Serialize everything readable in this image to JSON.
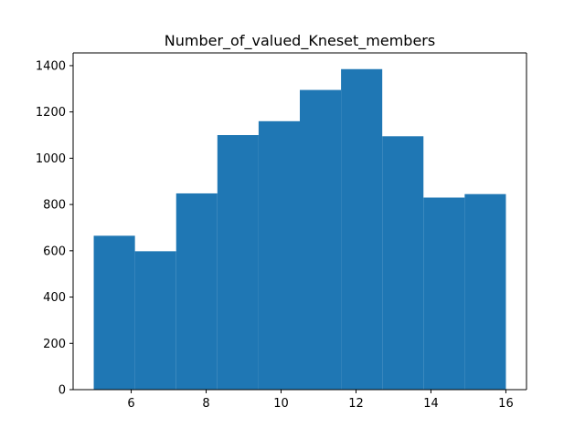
{
  "chart_data": {
    "type": "bar",
    "title": "Number_of_valued_Kneset_members",
    "xlabel": "",
    "ylabel": "",
    "bins": [
      {
        "x0": 5.0,
        "x1": 6.1,
        "count": 665
      },
      {
        "x0": 6.1,
        "x1": 7.2,
        "count": 598
      },
      {
        "x0": 7.2,
        "x1": 8.3,
        "count": 848
      },
      {
        "x0": 8.3,
        "x1": 9.4,
        "count": 1100
      },
      {
        "x0": 9.4,
        "x1": 10.5,
        "count": 1160
      },
      {
        "x0": 10.5,
        "x1": 11.6,
        "count": 1295
      },
      {
        "x0": 11.6,
        "x1": 12.7,
        "count": 1385
      },
      {
        "x0": 12.7,
        "x1": 13.8,
        "count": 1095
      },
      {
        "x0": 13.8,
        "x1": 14.9,
        "count": 830
      },
      {
        "x0": 14.9,
        "x1": 16.0,
        "count": 845
      }
    ],
    "xlim": [
      4.45,
      16.55
    ],
    "ylim": [
      0,
      1455
    ],
    "xticks": [
      6,
      8,
      10,
      12,
      14,
      16
    ],
    "yticks": [
      0,
      200,
      400,
      600,
      800,
      1000,
      1200,
      1400
    ],
    "bar_color": "#1f77b4",
    "grid": false,
    "legend": "none"
  }
}
